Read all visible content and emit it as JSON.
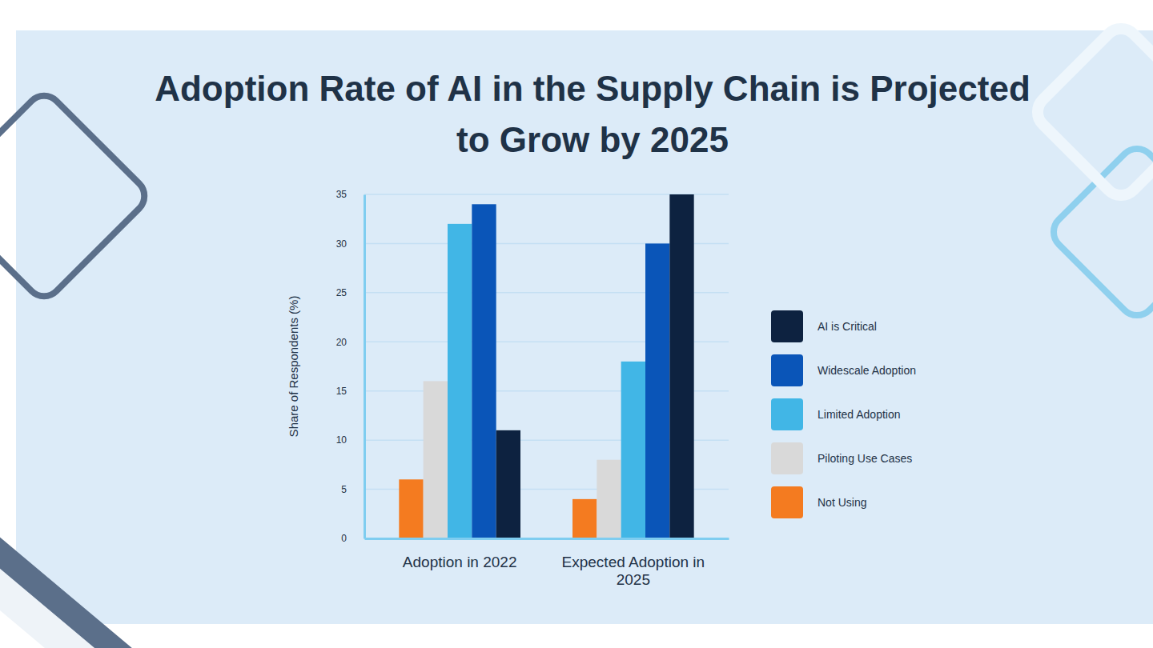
{
  "chart_data": {
    "type": "bar",
    "title": "Adoption Rate of AI in the Supply Chain is Projected to Grow by 2025",
    "y_label": "Share of Respondents (%)",
    "categories": [
      "Adoption in 2022",
      "Expected Adoption in 2025"
    ],
    "series": [
      {
        "name": "Not Using",
        "color": "#f47b20",
        "values": [
          6,
          4
        ]
      },
      {
        "name": "Piloting Use Cases",
        "color": "#d9d9d9",
        "values": [
          16,
          8
        ]
      },
      {
        "name": "Limited Adoption",
        "color": "#41b6e6",
        "values": [
          32,
          18
        ]
      },
      {
        "name": "Widescale Adoption",
        "color": "#0a55b8",
        "values": [
          34,
          30
        ]
      },
      {
        "name": "AI is Critical",
        "color": "#0d2240",
        "values": [
          11,
          35
        ]
      }
    ],
    "ylim": [
      0,
      35
    ],
    "yticks": [
      0,
      5,
      10,
      15,
      20,
      25,
      30,
      35
    ],
    "grid": true,
    "legend": "right"
  }
}
